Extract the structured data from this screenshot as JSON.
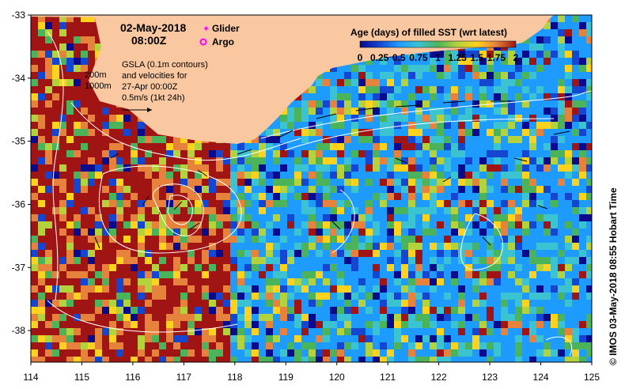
{
  "header": {
    "date": "02-May-2018",
    "time": "08:00Z"
  },
  "legend": {
    "glider_label": "Glider",
    "argo_label": "Argo",
    "glider_color": "#ff00ff",
    "argo_color": "#ff00ff"
  },
  "notes": {
    "gsla_line1": "GSLA (0.1m contours)",
    "gsla_line2": "and velocities for",
    "gsla_line3": "27-Apr 00:00Z",
    "gsla_line4": "0.5m/s (1kt 24h)",
    "isobath_200": "200m",
    "isobath_1000": "1000m"
  },
  "colorbar": {
    "title": "Age (days) of filled SST (wrt latest)",
    "ticks": [
      "0",
      "0.25",
      "0.5",
      "0.75",
      "1",
      "1.25",
      "1.5",
      "1.75",
      "2"
    ],
    "range": [
      0,
      2
    ],
    "colors": [
      "#0a0a8c",
      "#1446d2",
      "#1e9bff",
      "#3cc3d2",
      "#4bb45a",
      "#b4d23c",
      "#ffd21e",
      "#e6823c",
      "#a01414"
    ]
  },
  "axes": {
    "x_ticks": [
      "114",
      "115",
      "116",
      "117",
      "118",
      "119",
      "120",
      "121",
      "122",
      "123",
      "124",
      "125"
    ],
    "y_ticks": [
      "-33",
      "-34",
      "-35",
      "-36",
      "-37",
      "-38"
    ],
    "lon_range": [
      114,
      125
    ],
    "lat_range": [
      -38.5,
      -33
    ]
  },
  "credit": "© IMOS 03-May-2018 08:55 Hobart Time",
  "colors": {
    "land": "#fac8a0",
    "ocean_base": "#2aa0e6",
    "contour": "#ffffff",
    "arrow": "#000000"
  }
}
